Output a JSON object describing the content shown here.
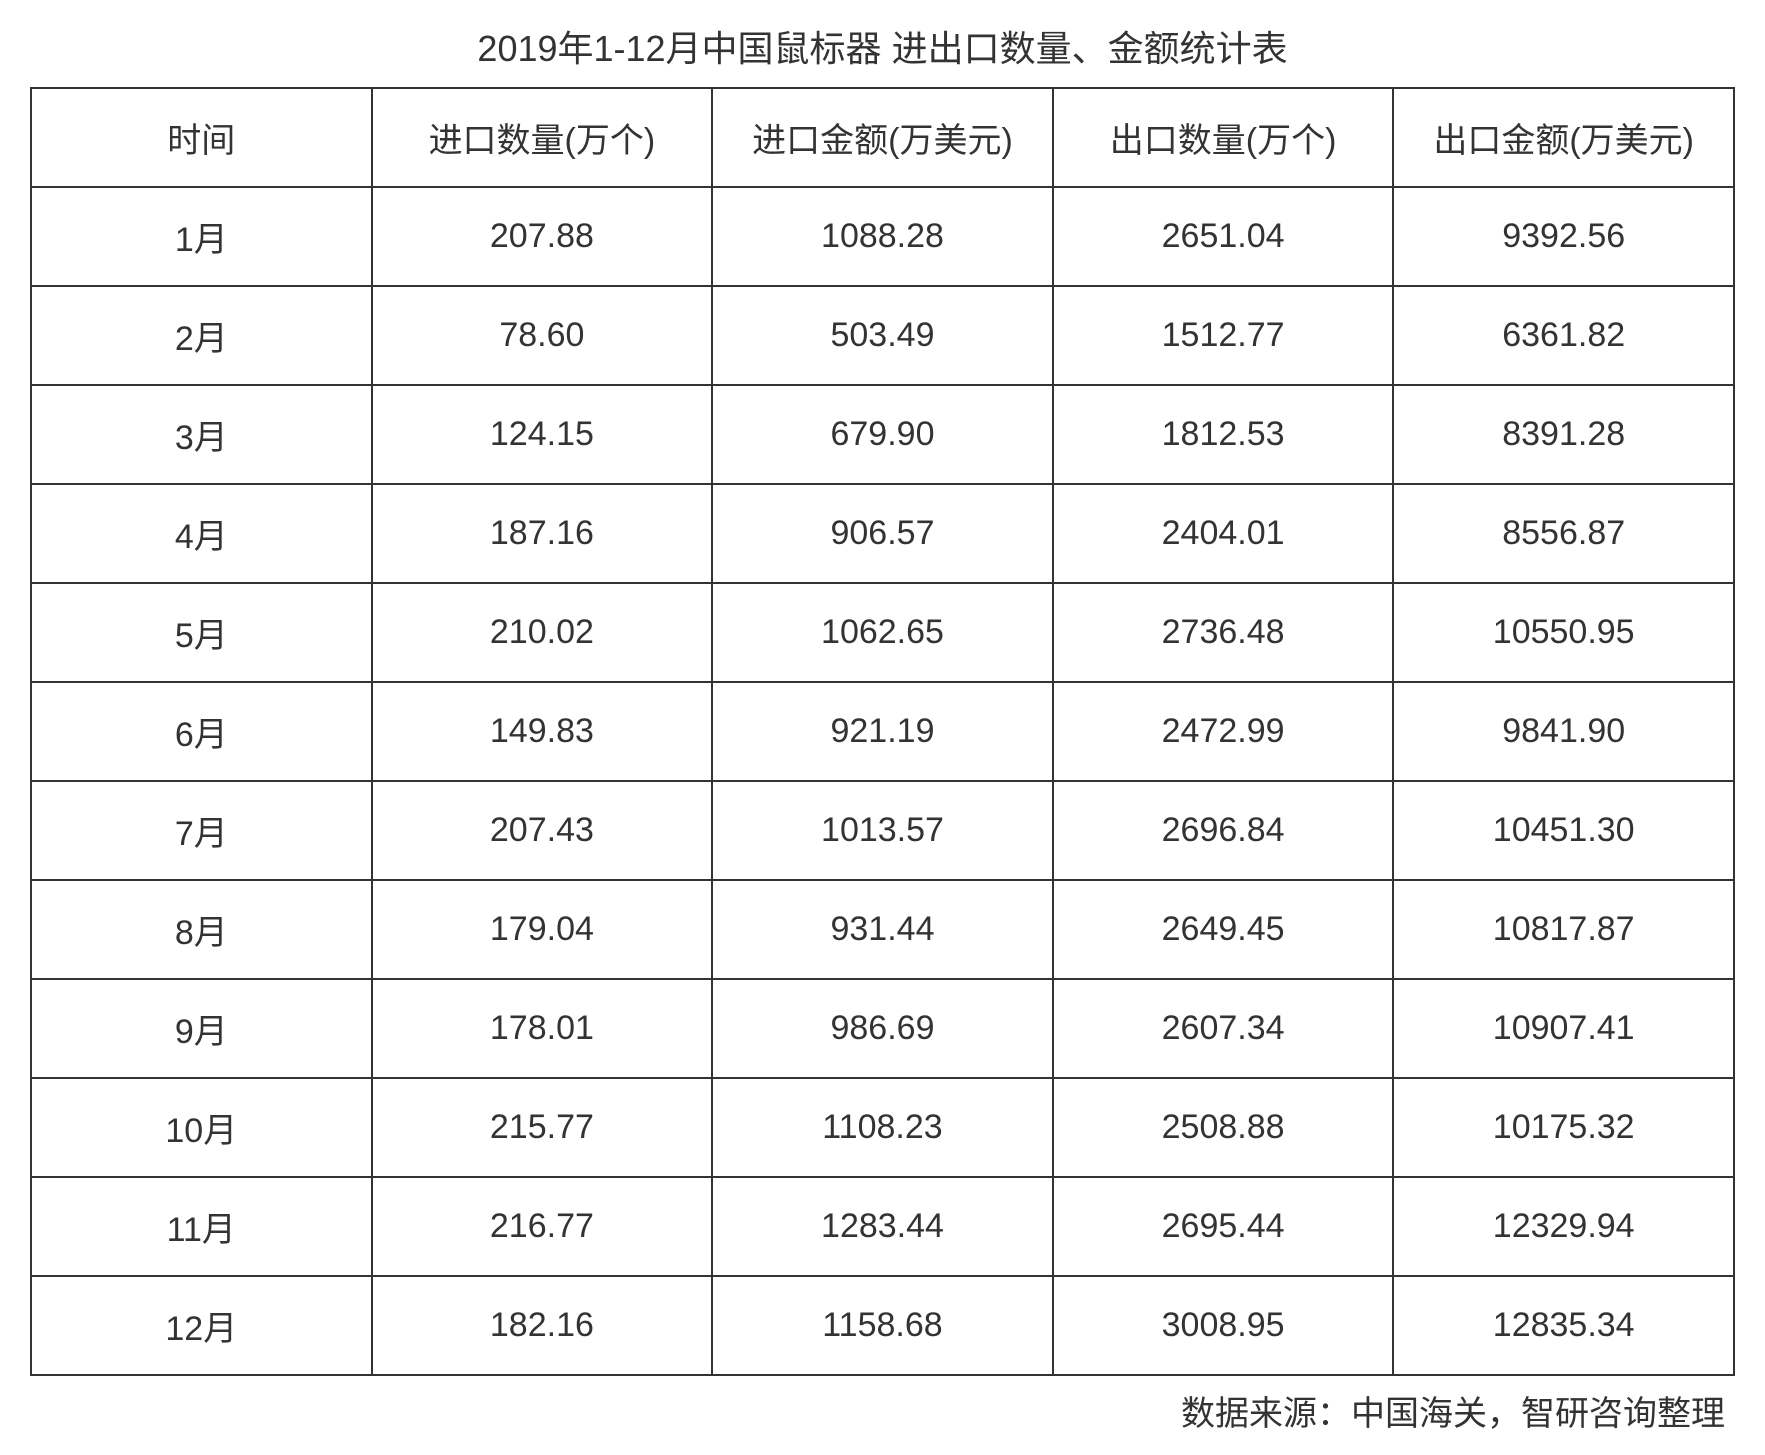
{
  "title": "2019年1-12月中国鼠标器 进出口数量、金额统计表",
  "columns": [
    "时间",
    "进口数量(万个)",
    "进口金额(万美元)",
    "出口数量(万个)",
    "出口金额(万美元)"
  ],
  "rows": [
    [
      "1月",
      "207.88",
      "1088.28",
      "2651.04",
      "9392.56"
    ],
    [
      "2月",
      "78.60",
      "503.49",
      "1512.77",
      "6361.82"
    ],
    [
      "3月",
      "124.15",
      "679.90",
      "1812.53",
      "8391.28"
    ],
    [
      "4月",
      "187.16",
      "906.57",
      "2404.01",
      "8556.87"
    ],
    [
      "5月",
      "210.02",
      "1062.65",
      "2736.48",
      "10550.95"
    ],
    [
      "6月",
      "149.83",
      "921.19",
      "2472.99",
      "9841.90"
    ],
    [
      "7月",
      "207.43",
      "1013.57",
      "2696.84",
      "10451.30"
    ],
    [
      "8月",
      "179.04",
      "931.44",
      "2649.45",
      "10817.87"
    ],
    [
      "9月",
      "178.01",
      "986.69",
      "2607.34",
      "10907.41"
    ],
    [
      "10月",
      "215.77",
      "1108.23",
      "2508.88",
      "10175.32"
    ],
    [
      "11月",
      "216.77",
      "1283.44",
      "2695.44",
      "12329.94"
    ],
    [
      "12月",
      "182.16",
      "1158.68",
      "3008.95",
      "12835.34"
    ]
  ],
  "footer": "数据来源：中国海关，智研咨询整理",
  "styling": {
    "background_color": "#ffffff",
    "text_color": "#333333",
    "border_color": "#333333",
    "border_width": 2,
    "title_fontsize": 36,
    "cell_fontsize": 34,
    "footer_fontsize": 34,
    "cell_padding_vertical": 24,
    "column_count": 5,
    "row_count": 12,
    "text_align": "center"
  }
}
